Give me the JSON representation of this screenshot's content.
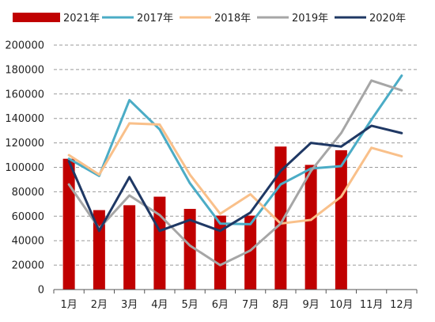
{
  "chart_data": {
    "type": "bar+line",
    "categories": [
      "1月",
      "2月",
      "3月",
      "4月",
      "5月",
      "6月",
      "7月",
      "8月",
      "9月",
      "10月",
      "11月",
      "12月"
    ],
    "ylim": [
      0,
      200000
    ],
    "yticks": [
      "0",
      "20000",
      "40000",
      "60000",
      "80000",
      "100000",
      "120000",
      "140000",
      "160000",
      "180000",
      "200000"
    ],
    "ytick_values": [
      0,
      20000,
      40000,
      60000,
      80000,
      100000,
      120000,
      140000,
      160000,
      180000,
      200000
    ],
    "grid": true,
    "legend_position": "top",
    "bar_series": {
      "name": "2021年",
      "color": "#C00000",
      "values": [
        107000,
        65000,
        69000,
        76000,
        66000,
        60500,
        60500,
        117000,
        102000,
        114000,
        null,
        null
      ]
    },
    "line_series": [
      {
        "name": "2017年",
        "color": "#4BACC6",
        "values": [
          107000,
          93000,
          155000,
          131000,
          87000,
          54000,
          53500,
          86000,
          99000,
          101000,
          139000,
          175000
        ]
      },
      {
        "name": "2018年",
        "color": "#F9C08A",
        "values": [
          110000,
          94000,
          136000,
          135000,
          94000,
          62000,
          78000,
          54000,
          57000,
          76000,
          116000,
          109000
        ]
      },
      {
        "name": "2019年",
        "color": "#A6A6A6",
        "values": [
          86000,
          50000,
          77000,
          61000,
          36000,
          20000,
          32000,
          54000,
          97000,
          128000,
          171000,
          163000
        ]
      },
      {
        "name": "2020年",
        "color": "#1F3864",
        "values": [
          105000,
          48000,
          92000,
          48000,
          57000,
          48000,
          63000,
          97000,
          120000,
          117000,
          134000,
          128000
        ]
      }
    ]
  }
}
